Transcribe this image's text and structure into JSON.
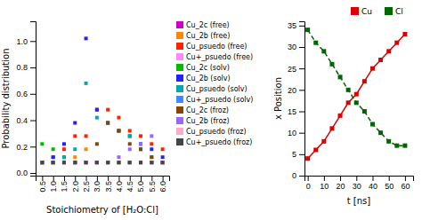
{
  "chart_data": [
    {
      "type": "scatter",
      "x_label": "Stoichiometry of [H₂O:Cl]",
      "y_label": "Probability distribution",
      "x": [
        0.5,
        1.0,
        1.5,
        2.0,
        2.5,
        3.0,
        3.5,
        4.0,
        4.5,
        5.0,
        5.5,
        6.0
      ],
      "xlim": [
        0.2,
        6.3
      ],
      "ylim": [
        -0.02,
        1.15
      ],
      "xticks": [
        0.5,
        {
          "value": 1.0,
          "label": "1.0"
        },
        1.5,
        {
          "value": 2.0,
          "label": "2.0"
        },
        2.5,
        {
          "value": 3.0,
          "label": "3.0"
        },
        3.5,
        {
          "value": 4.0,
          "label": "4.0"
        },
        4.5,
        {
          "value": 5.0,
          "label": "5.0"
        },
        5.5,
        {
          "value": 6.0,
          "label": "6.0"
        }
      ],
      "yticks": [
        {
          "value": 0.0,
          "label": "0.0"
        },
        0.2,
        0.4,
        0.6,
        0.8,
        {
          "value": 1.0,
          "label": "1.0"
        }
      ],
      "legend": "right",
      "marker": "square",
      "series": [
        {
          "name": "Cu_2c (free)",
          "color": "#cc00cc",
          "values": [
            0.08,
            0.08,
            0.08,
            0.08,
            0.08,
            0.08,
            0.08,
            0.08,
            0.08,
            0.08,
            0.08,
            0.08
          ]
        },
        {
          "name": "Cu_2b (free)",
          "color": "#ff8800",
          "values": [
            0.08,
            0.08,
            0.12,
            0.12,
            0.18,
            0.08,
            0.08,
            0.08,
            0.08,
            0.08,
            0.08,
            0.08
          ]
        },
        {
          "name": "Cu_psuedo (free)",
          "color": "#ff2200",
          "values": [
            0.08,
            0.12,
            0.18,
            0.28,
            0.28,
            0.48,
            0.48,
            0.42,
            0.32,
            0.28,
            0.22,
            0.18
          ]
        },
        {
          "name": "Cu+_psuedo (free)",
          "color": "#ff88ff",
          "values": [
            0.08,
            0.08,
            0.08,
            0.08,
            0.08,
            0.08,
            0.08,
            0.08,
            0.08,
            0.08,
            0.08,
            0.08
          ]
        },
        {
          "name": "Cu_2c (solv)",
          "color": "#00bb00",
          "values": [
            0.22,
            0.18,
            0.12,
            0.08,
            0.08,
            0.08,
            0.08,
            0.08,
            0.08,
            0.08,
            0.08,
            0.08
          ]
        },
        {
          "name": "Cu_2b (solv)",
          "color": "#2222ff",
          "values": [
            0.08,
            0.12,
            0.22,
            0.38,
            1.02,
            0.48,
            0.38,
            0.32,
            0.28,
            0.22,
            0.18,
            0.12
          ]
        },
        {
          "name": "Cu_psuedo (solv)",
          "color": "#00aaaa",
          "values": [
            0.08,
            0.08,
            0.12,
            0.18,
            0.68,
            0.42,
            0.38,
            0.32,
            0.28,
            0.18,
            0.12,
            0.08
          ]
        },
        {
          "name": "Cu+_psuedo (solv)",
          "color": "#4488ff",
          "values": [
            0.08,
            0.08,
            0.08,
            0.08,
            0.08,
            0.08,
            0.08,
            0.08,
            0.08,
            0.08,
            0.08,
            0.08
          ]
        },
        {
          "name": "Cu_2c (froz)",
          "color": "#884400",
          "values": [
            0.08,
            0.08,
            0.08,
            0.08,
            0.08,
            0.22,
            0.38,
            0.32,
            0.22,
            0.18,
            0.12,
            0.08
          ]
        },
        {
          "name": "Cu_2b (froz)",
          "color": "#9966ff",
          "values": [
            0.08,
            0.08,
            0.08,
            0.08,
            0.08,
            0.08,
            0.08,
            0.12,
            0.18,
            0.22,
            0.28,
            0.08
          ]
        },
        {
          "name": "Cu_psuedo (froz)",
          "color": "#ffaacc",
          "values": [
            0.08,
            0.08,
            0.08,
            0.08,
            0.08,
            0.08,
            0.08,
            0.08,
            0.08,
            0.08,
            0.08,
            0.08
          ]
        },
        {
          "name": "Cu+_psuedo (froz)",
          "color": "#444444",
          "values": [
            0.08,
            0.08,
            0.08,
            0.08,
            0.08,
            0.08,
            0.08,
            0.08,
            0.08,
            0.08,
            0.08,
            0.08
          ]
        }
      ]
    },
    {
      "type": "line",
      "x_label": "t [ns]",
      "y_label": "x Position",
      "x": [
        0,
        5,
        10,
        15,
        20,
        25,
        30,
        35,
        40,
        45,
        50,
        55,
        60
      ],
      "xlim": [
        -2,
        65
      ],
      "ylim": [
        0,
        36
      ],
      "xticks": [
        0,
        10,
        20,
        30,
        40,
        50,
        60
      ],
      "yticks": [
        0,
        5,
        10,
        15,
        20,
        25,
        30,
        35
      ],
      "legend": "upper right",
      "series": [
        {
          "name": "Cu",
          "color": "#dd0000",
          "marker": "square",
          "line_style": "solid",
          "values": [
            4,
            6,
            8,
            11,
            14,
            17,
            19,
            22,
            25,
            27,
            29,
            31,
            33
          ]
        },
        {
          "name": "Cl",
          "color": "#006600",
          "marker": "square",
          "line_style": "dashed",
          "values": [
            34,
            31,
            29,
            26,
            23,
            20,
            17,
            15,
            12,
            10,
            8,
            7,
            7
          ]
        }
      ]
    }
  ]
}
